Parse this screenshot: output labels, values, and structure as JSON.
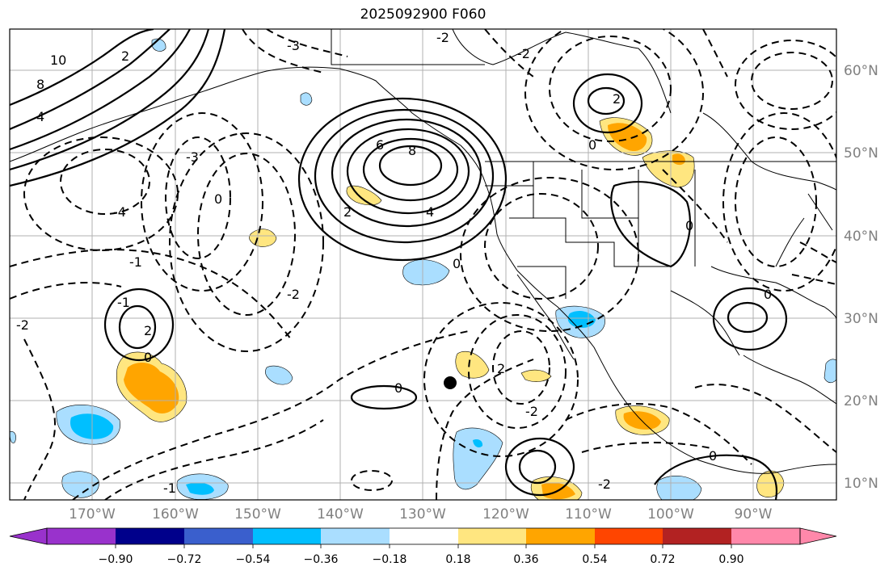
{
  "title": "2025092900 F060",
  "colors": {
    "land_border": "#000000",
    "grid": "#b0b0b0",
    "neg_strong": "#00bfff",
    "neg_weak": "#aadeff",
    "pos_weak": "#ffe680",
    "pos_mid": "#ffa500",
    "axis_label": "#808080"
  },
  "lat_labels": [
    "60°N",
    "50°N",
    "40°N",
    "30°N",
    "20°N",
    "10°N"
  ],
  "lon_labels": [
    "170°W",
    "160°W",
    "150°W",
    "140°W",
    "130°W",
    "120°W",
    "110°W",
    "100°W",
    "90°W"
  ],
  "colorbar": {
    "colors": [
      "#9932cc",
      "#00008b",
      "#3a5fcd",
      "#00bfff",
      "#aadeff",
      "#ffffff",
      "#ffe680",
      "#ffa500",
      "#ff4500",
      "#b22222",
      "#ff88aa"
    ],
    "tick_labels": [
      "−0.90",
      "−0.72",
      "−0.54",
      "−0.36",
      "−0.18",
      "0.18",
      "0.36",
      "0.54",
      "0.72",
      "0.90"
    ]
  },
  "contour_labels": [
    {
      "text": "10"
    },
    {
      "text": "8"
    },
    {
      "text": "4"
    },
    {
      "text": "2"
    },
    {
      "text": "-3"
    },
    {
      "text": "-4"
    },
    {
      "text": "6"
    },
    {
      "text": "8"
    },
    {
      "text": "4"
    },
    {
      "text": "2"
    },
    {
      "text": "-2"
    },
    {
      "text": "-2"
    },
    {
      "text": "0"
    },
    {
      "text": "-1"
    },
    {
      "text": "-2"
    },
    {
      "text": "0"
    },
    {
      "text": "-3"
    },
    {
      "text": "-2"
    },
    {
      "text": "-1"
    },
    {
      "text": "2"
    },
    {
      "text": "0"
    },
    {
      "text": "0"
    },
    {
      "text": "0"
    },
    {
      "text": "2"
    },
    {
      "text": "0"
    },
    {
      "text": "0"
    },
    {
      "text": "2"
    },
    {
      "text": "0"
    },
    {
      "text": "-2"
    },
    {
      "text": "-1"
    },
    {
      "text": "-2"
    }
  ]
}
